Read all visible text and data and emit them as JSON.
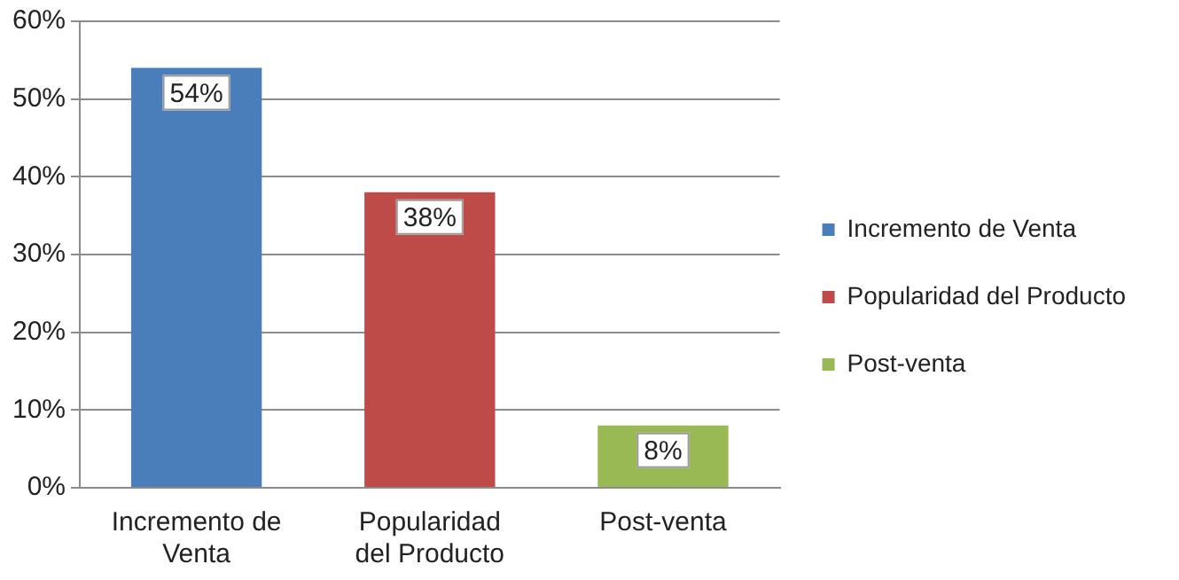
{
  "chart_data": {
    "type": "bar",
    "categories": [
      "Incremento de Venta",
      "Popularidad del Producto",
      "Post-venta"
    ],
    "series": [
      {
        "name": "Incremento de Venta",
        "color": "#4a7ebb",
        "values": [
          54,
          null,
          null
        ],
        "value_labels": [
          "54%",
          null,
          null
        ]
      },
      {
        "name": "Popularidad del Producto",
        "color": "#be4b48",
        "values": [
          null,
          38,
          null
        ],
        "value_labels": [
          null,
          "38%",
          null
        ]
      },
      {
        "name": "Post-venta",
        "color": "#98b954",
        "values": [
          null,
          null,
          8
        ],
        "value_labels": [
          null,
          null,
          "8%"
        ]
      }
    ],
    "ylim": [
      0,
      60
    ],
    "yticks": [
      {
        "value": 0,
        "label": "0%"
      },
      {
        "value": 10,
        "label": "10%"
      },
      {
        "value": 20,
        "label": "20%"
      },
      {
        "value": 30,
        "label": "30%"
      },
      {
        "value": 40,
        "label": "40%"
      },
      {
        "value": 50,
        "label": "50%"
      },
      {
        "value": 60,
        "label": "60%"
      }
    ],
    "grid": "y",
    "legend": "right"
  }
}
